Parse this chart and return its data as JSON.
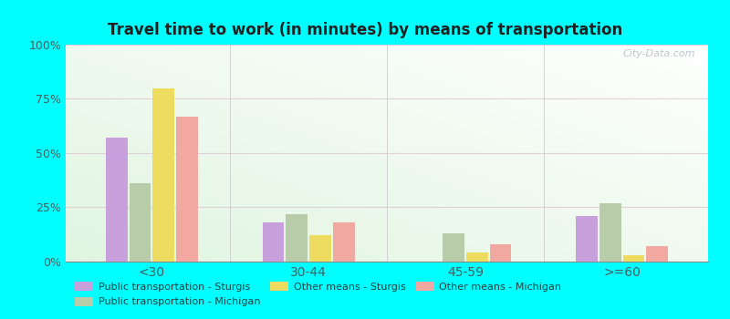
{
  "title": "Travel time to work (in minutes) by means of transportation",
  "categories": [
    "<30",
    "30-44",
    "45-59",
    ">=60"
  ],
  "series": {
    "Public transportation - Sturgis": [
      57,
      18,
      0,
      21
    ],
    "Public transportation - Michigan": [
      36,
      22,
      13,
      27
    ],
    "Other means - Sturgis": [
      80,
      12,
      4,
      3
    ],
    "Other means - Michigan": [
      67,
      18,
      8,
      7
    ]
  },
  "colors": {
    "Public transportation - Sturgis": "#c8a0dc",
    "Public transportation - Michigan": "#b8ccaa",
    "Other means - Sturgis": "#eedc60",
    "Other means - Michigan": "#f0a8a0"
  },
  "ylim": [
    0,
    100
  ],
  "yticks": [
    0,
    25,
    50,
    75,
    100
  ],
  "ytick_labels": [
    "0%",
    "25%",
    "50%",
    "75%",
    "100%"
  ],
  "outer_background": "#00ffff",
  "title_color": "#202020",
  "watermark": "City-Data.com",
  "legend_order": [
    "Public transportation - Sturgis",
    "Public transportation - Michigan",
    "Other means - Sturgis",
    "Other means - Michigan"
  ]
}
